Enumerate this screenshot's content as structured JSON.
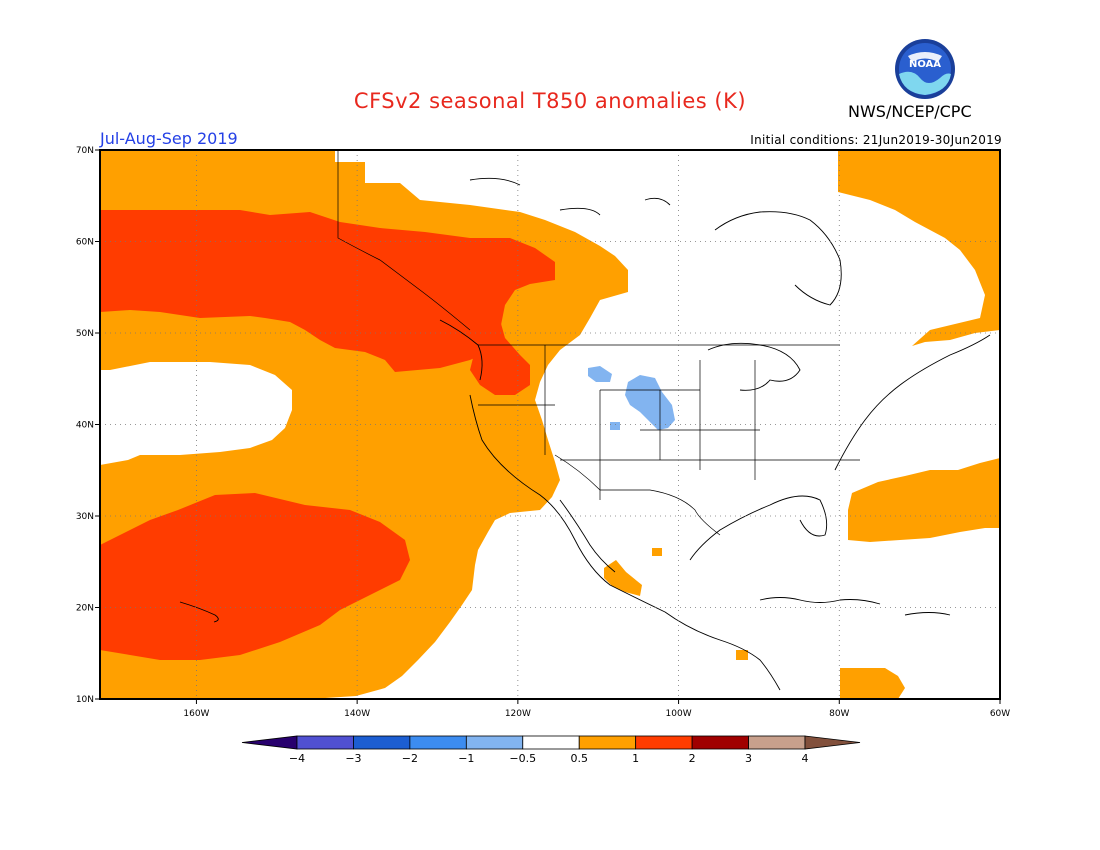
{
  "title": "CFSv2 seasonal T850 anomalies (K)",
  "organization": "NWS/NCEP/CPC",
  "logo_text": "NOAA",
  "season": "Jul-Aug-Sep 2019",
  "initial_conditions": "Initial conditions: 21Jun2019-30Jun2019",
  "map": {
    "lon_range": [
      -172,
      -60
    ],
    "lat_range": [
      10,
      70
    ],
    "lon_ticks": [
      {
        "lon": -160,
        "label": "160W"
      },
      {
        "lon": -140,
        "label": "140W"
      },
      {
        "lon": -120,
        "label": "120W"
      },
      {
        "lon": -100,
        "label": "100W"
      },
      {
        "lon": -80,
        "label": "80W"
      },
      {
        "lon": -60,
        "label": "60W"
      }
    ],
    "lat_ticks": [
      {
        "lat": 70,
        "label": "70N"
      },
      {
        "lat": 60,
        "label": "60N"
      },
      {
        "lat": 50,
        "label": "50N"
      },
      {
        "lat": 40,
        "label": "40N"
      },
      {
        "lat": 30,
        "label": "30N"
      },
      {
        "lat": 20,
        "label": "20N"
      },
      {
        "lat": 10,
        "label": "10N"
      }
    ]
  },
  "colorbar": {
    "colors": [
      "#28006e",
      "#5050d2",
      "#1c5ed2",
      "#3c8cf0",
      "#82b4f0",
      "#ffffff",
      "#ffa000",
      "#ff3c00",
      "#a00000",
      "#c8a08c",
      "#82503c"
    ],
    "labels": [
      "−4",
      "−3",
      "−2",
      "−1",
      "−0.5",
      "0.5",
      "1",
      "2",
      "3",
      "4"
    ]
  },
  "colors": {
    "anomaly_0_5_to_1": "#ffa000",
    "anomaly_1_to_2": "#ff3c00",
    "anomaly_neg_0_5_to_neg_1": "#82b4f0",
    "title": "#e8281e",
    "season": "#2440e6"
  }
}
